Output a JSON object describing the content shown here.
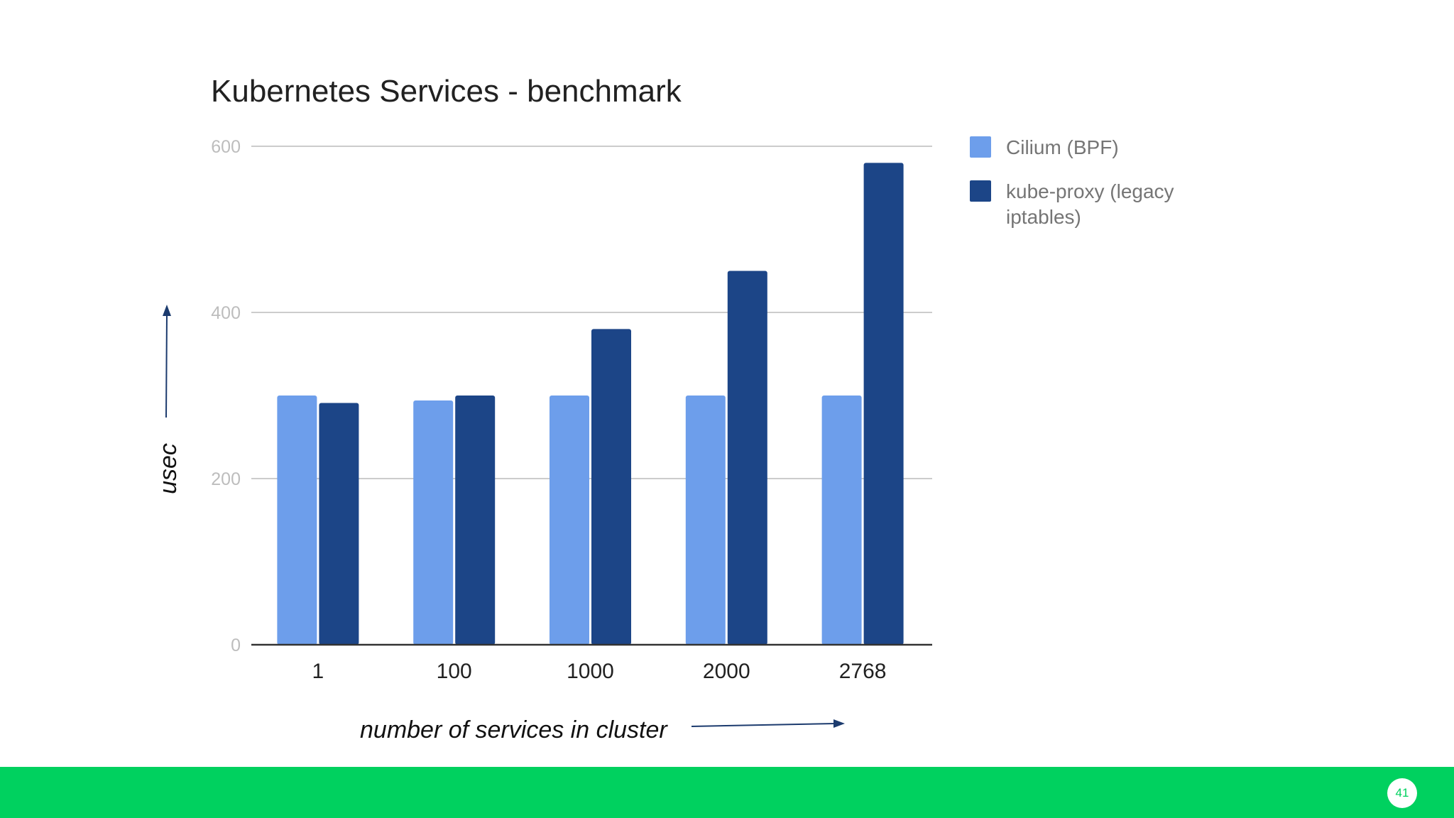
{
  "colors": {
    "background": "#ffffff",
    "series_light": "#6d9eeb",
    "series_dark": "#1c4587",
    "gridline": "#cccccc",
    "axis": "#333333",
    "arrow": "#1c3b6e",
    "footer": "#00d15f"
  },
  "annotations": {
    "y_caption": "usec",
    "x_caption": "number of services in cluster"
  },
  "footer": {
    "page_number": "41"
  },
  "chart_data": {
    "type": "bar",
    "title": "Kubernetes Services - benchmark",
    "xlabel": "",
    "ylabel": "",
    "categories": [
      "1",
      "100",
      "1000",
      "2000",
      "2768"
    ],
    "series": [
      {
        "name": "Cilium (BPF)",
        "values": [
          300,
          294,
          300,
          300,
          300
        ]
      },
      {
        "name": "kube-proxy (legacy iptables)",
        "values": [
          291,
          300,
          380,
          450,
          580
        ]
      }
    ],
    "ylim": [
      0,
      600
    ],
    "yticks": [
      0,
      200,
      400,
      600
    ],
    "grid": true,
    "legend": "right"
  }
}
